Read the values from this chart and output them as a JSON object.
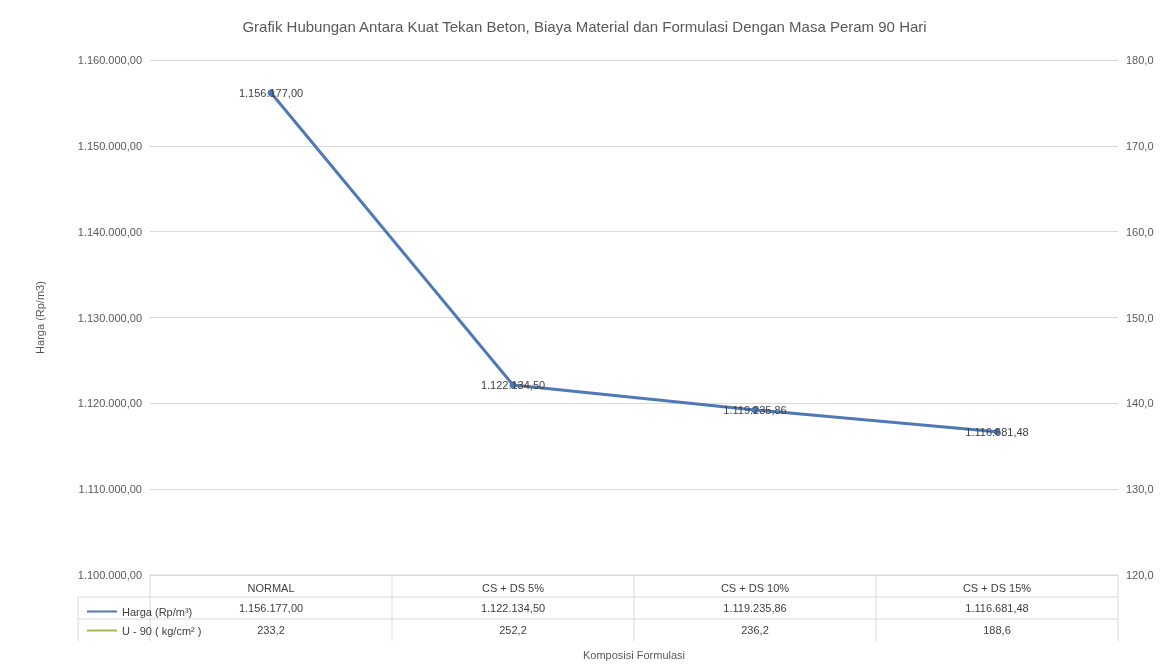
{
  "chart_data": {
    "type": "line",
    "title": "Grafik Hubungan Antara Kuat Tekan Beton, Biaya Material dan Formulasi Dengan Masa Peram 90 Hari",
    "annotations": [
      "Komposisi Formulasi"
    ],
    "ylabel": "Harga (Rp/m3)",
    "categories": [
      "NORMAL",
      "CS + DS 5%",
      "CS + DS 10%",
      "CS + DS 15%"
    ],
    "series": [
      {
        "name": "Harga (Rp/m³)",
        "color": "#4e79b4",
        "values": [
          1156177.0,
          1122134.5,
          1119235.86,
          1116681.48
        ],
        "value_labels": [
          "1.156.177,00",
          "1.122.134,50",
          "1.119.235,86",
          "1.116.681,48"
        ]
      },
      {
        "name": "U - 90 ( kg/cm² )",
        "color": "#9bbb59",
        "values": [
          null,
          null,
          null,
          null
        ],
        "value_labels": [
          "233,2",
          "252,2",
          "236,2",
          "188,6"
        ]
      }
    ],
    "ylim": [
      1100000,
      1160000
    ],
    "yticks": [
      {
        "value": 1100000,
        "label": "1.100.000,00"
      },
      {
        "value": 1110000,
        "label": "1.110.000,00"
      },
      {
        "value": 1120000,
        "label": "1.120.000,00"
      },
      {
        "value": 1130000,
        "label": "1.130.000,00"
      },
      {
        "value": 1140000,
        "label": "1.140.000,00"
      },
      {
        "value": 1150000,
        "label": "1.150.000,00"
      },
      {
        "value": 1160000,
        "label": "1.160.000,00"
      }
    ],
    "y2lim": [
      120,
      180
    ],
    "y2ticks": [
      {
        "value": 120,
        "label": "120,0"
      },
      {
        "value": 130,
        "label": "130,0"
      },
      {
        "value": 140,
        "label": "140,0"
      },
      {
        "value": 150,
        "label": "150,0"
      },
      {
        "value": 160,
        "label": "160,0"
      },
      {
        "value": 170,
        "label": "170,0"
      },
      {
        "value": 180,
        "label": "180,0"
      }
    ],
    "grid": "y",
    "legend": "bottom",
    "marker": "circle",
    "line_style": "solid"
  }
}
